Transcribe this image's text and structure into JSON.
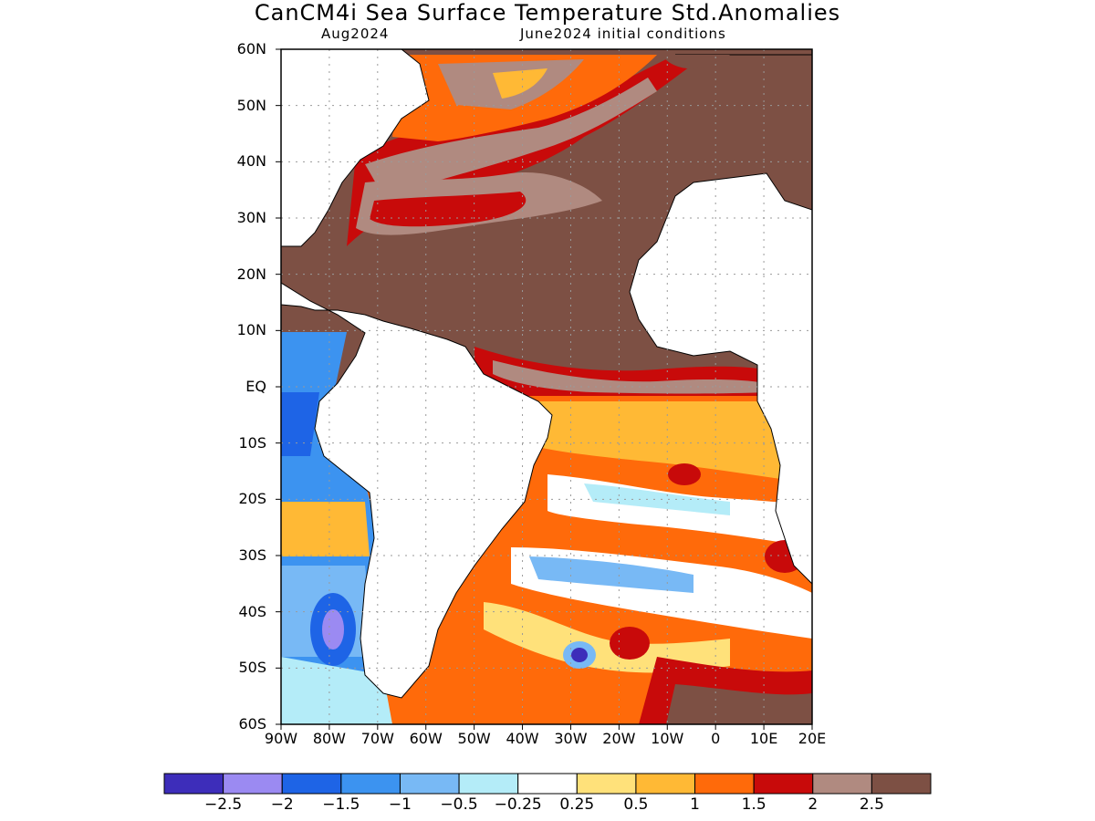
{
  "title": "CanCM4i Sea Surface Temperature Std.Anomalies",
  "subtitle_left": "Aug2024",
  "subtitle_right": "June2024 initial conditions",
  "lat_labels": [
    "60N",
    "50N",
    "40N",
    "30N",
    "20N",
    "10N",
    "EQ",
    "10S",
    "20S",
    "30S",
    "40S",
    "50S",
    "60S"
  ],
  "lon_labels": [
    "90W",
    "80W",
    "70W",
    "60W",
    "50W",
    "40W",
    "30W",
    "20W",
    "10W",
    "0",
    "10E",
    "20E"
  ],
  "colorbar": {
    "colors": [
      "#3d2dba",
      "#9b8af2",
      "#1e64e6",
      "#3c93f0",
      "#78b9f5",
      "#b4ecf8",
      "#ffffff",
      "#ffe17a",
      "#ffb935",
      "#ff6a0a",
      "#c80a0a",
      "#b08a80",
      "#7d5044"
    ],
    "labels": [
      "−2.5",
      "−2",
      "−1.5",
      "−1",
      "−0.5",
      "−0.25",
      "0.25",
      "0.5",
      "1",
      "1.5",
      "2",
      "2.5"
    ]
  },
  "map_colors": {
    "land": "#ffffff",
    "coast": "#000000",
    "grid": "#9a9a9a"
  }
}
